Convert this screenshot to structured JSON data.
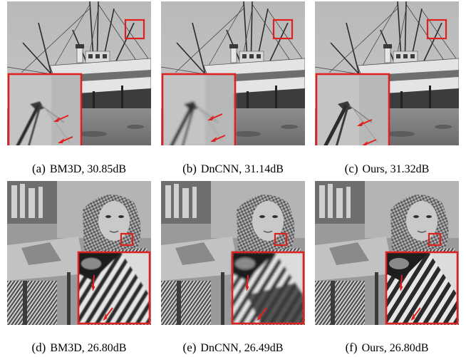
{
  "figure": {
    "panels": [
      {
        "id": "a",
        "scene": "boat",
        "method": "BM3D",
        "score": "30.85dB",
        "index_label": "(a)"
      },
      {
        "id": "b",
        "scene": "boat",
        "method": "DnCNN",
        "score": "31.14dB",
        "index_label": "(b)"
      },
      {
        "id": "c",
        "scene": "boat",
        "method": "Ours",
        "score": "31.32dB",
        "index_label": "(c)"
      },
      {
        "id": "d",
        "scene": "barbara",
        "method": "BM3D",
        "score": "26.80dB",
        "index_label": "(d)"
      },
      {
        "id": "e",
        "scene": "barbara",
        "method": "DnCNN",
        "score": "26.49dB",
        "index_label": "(e)"
      },
      {
        "id": "f",
        "scene": "barbara",
        "method": "Ours",
        "score": "26.80dB",
        "index_label": "(f)"
      }
    ],
    "colors": {
      "highlight": "#e0201e",
      "arrow": "#e0201e"
    }
  }
}
